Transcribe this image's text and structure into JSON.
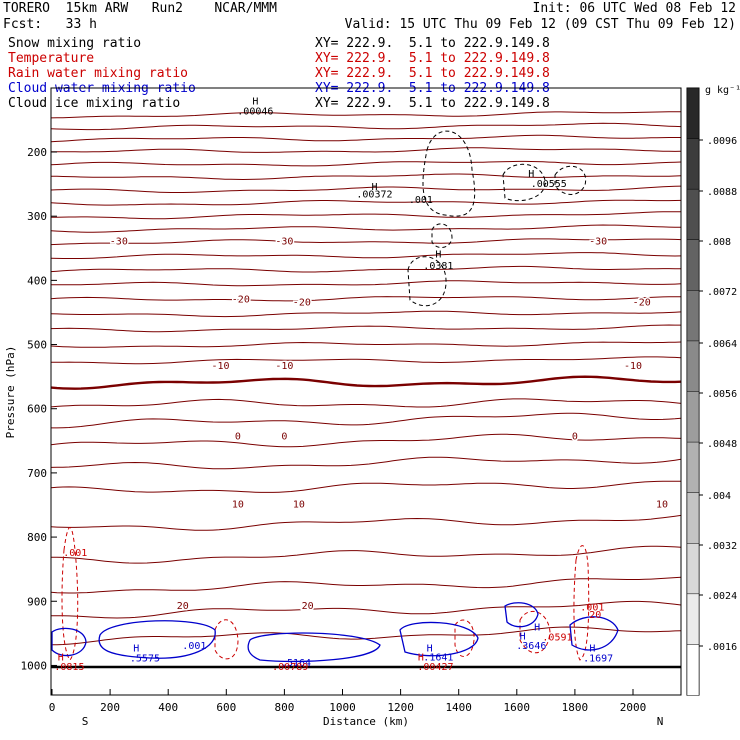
{
  "header": {
    "model": "TORERO  15km ARW   Run2    NCAR/MMM",
    "init": "Init: 06 UTC Wed 08 Feb 12",
    "fcst": "Fcst:   33 h",
    "valid": "Valid: 15 UTC Thu 09 Feb 12 (09 CST Thu 09 Feb 12)"
  },
  "fields": [
    {
      "name": "Snow mixing ratio",
      "xy": "XY= 222.9.  5.1 to 222.9.149.8",
      "color": "#000000",
      "xy_color": "#000000"
    },
    {
      "name": "Temperature",
      "xy": "XY= 222.9.  5.1 to 222.9.149.8",
      "color": "#cc0000",
      "xy_color": "#cc0000"
    },
    {
      "name": "Rain water mixing ratio",
      "xy": "XY= 222.9.  5.1 to 222.9.149.8",
      "color": "#cc0000",
      "xy_color": "#cc0000"
    },
    {
      "name": "Cloud water mixing ratio",
      "xy": "XY= 222.9.  5.1 to 222.9.149.8",
      "color": "#0000cc",
      "xy_color": "#0000cc"
    },
    {
      "name": "Cloud ice mixing ratio",
      "xy": "XY= 222.9.  5.1 to 222.9.149.8",
      "color": "#000000",
      "xy_color": "#000000"
    }
  ],
  "chart_data": {
    "type": "contour",
    "xlabel": "Distance (km)",
    "ylabel": "Pressure (hPa)",
    "xlim": [
      0,
      2170
    ],
    "ylim": [
      1010,
      100
    ],
    "x_ticks": [
      0,
      200,
      400,
      600,
      800,
      1000,
      1200,
      1400,
      1600,
      1800,
      2000
    ],
    "y_ticks": [
      200,
      300,
      400,
      500,
      600,
      700,
      800,
      900,
      1000
    ],
    "direction_left": "S",
    "direction_right": "N",
    "colorbar": {
      "unit": "g kg⁻¹",
      "ticks": [
        ".0096",
        ".0088",
        ".008",
        ".0072",
        ".0064",
        ".0056",
        ".0048",
        ".004",
        ".0032",
        ".0024",
        ".0016"
      ]
    },
    "temperature_labels": [
      {
        "text": "-30",
        "x": 230,
        "p": 338
      },
      {
        "text": "-30",
        "x": 800,
        "p": 338
      },
      {
        "text": "-30",
        "x": 1880,
        "p": 338
      },
      {
        "text": "-20",
        "x": 650,
        "p": 428
      },
      {
        "text": "-20",
        "x": 860,
        "p": 433
      },
      {
        "text": "-20",
        "x": 2030,
        "p": 433
      },
      {
        "text": "-10",
        "x": 580,
        "p": 532
      },
      {
        "text": "-10",
        "x": 800,
        "p": 532
      },
      {
        "text": "-10",
        "x": 2000,
        "p": 532
      },
      {
        "text": "0",
        "x": 640,
        "p": 642
      },
      {
        "text": "0",
        "x": 800,
        "p": 642
      },
      {
        "text": "0",
        "x": 1800,
        "p": 642
      },
      {
        "text": "10",
        "x": 640,
        "p": 748
      },
      {
        "text": "10",
        "x": 850,
        "p": 748
      },
      {
        "text": "10",
        "x": 2100,
        "p": 748
      },
      {
        "text": "20",
        "x": 450,
        "p": 906
      },
      {
        "text": "20",
        "x": 880,
        "p": 906
      }
    ],
    "snow_labels": [
      {
        "text": "H",
        "x": 700,
        "p": 120
      },
      {
        "text": ".00046",
        "x": 700,
        "p": 135
      },
      {
        "text": "H",
        "x": 1110,
        "p": 253
      },
      {
        "text": ".00372",
        "x": 1110,
        "p": 265
      },
      {
        "text": ".001",
        "x": 1270,
        "p": 273
      },
      {
        "text": "H",
        "x": 1650,
        "p": 233
      },
      {
        "text": ".00555",
        "x": 1710,
        "p": 248
      }
    ],
    "ice_labels": [
      {
        "text": "H",
        "x": 1330,
        "p": 358
      },
      {
        "text": ".0381",
        "x": 1330,
        "p": 376
      }
    ],
    "cloudwater_labels": [
      {
        "text": "H",
        "x": 290,
        "p": 972
      },
      {
        "text": ".5575",
        "x": 320,
        "p": 988
      },
      {
        "text": ".001",
        "x": 490,
        "p": 968
      },
      {
        "text": ".5164",
        "x": 840,
        "p": 995
      },
      {
        "text": "H",
        "x": 1300,
        "p": 972
      },
      {
        "text": ".1641",
        "x": 1330,
        "p": 986
      },
      {
        "text": "H",
        "x": 1620,
        "p": 953
      },
      {
        "text": ".3646",
        "x": 1650,
        "p": 968
      },
      {
        "text": "H",
        "x": 1860,
        "p": 972
      },
      {
        "text": ".1697",
        "x": 1880,
        "p": 988
      },
      {
        "text": "H",
        "x": 1670,
        "p": 939
      }
    ],
    "rain_labels": [
      {
        "text": ".001",
        "x": 80,
        "p": 823
      },
      {
        "text": "H",
        "x": 30,
        "p": 986
      },
      {
        "text": ".0815",
        "x": 60,
        "p": 1001
      },
      {
        "text": ".00789",
        "x": 820,
        "p": 1001
      },
      {
        "text": "H",
        "x": 1270,
        "p": 986
      },
      {
        "text": ".00427",
        "x": 1320,
        "p": 1001
      },
      {
        "text": ".0591",
        "x": 1740,
        "p": 955
      },
      {
        "text": ".001",
        "x": 1860,
        "p": 908
      },
      {
        "text": "20",
        "x": 1870,
        "p": 920
      }
    ]
  }
}
